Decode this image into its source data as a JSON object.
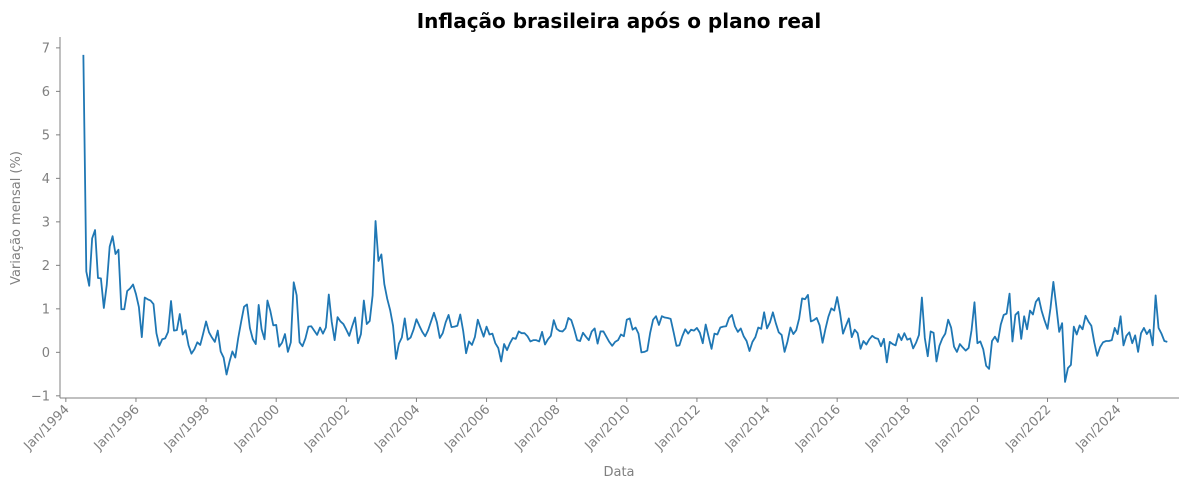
{
  "chart_data": {
    "type": "line",
    "title": "Inflação brasileira após o plano real",
    "xlabel": "Data",
    "ylabel": "Variação mensal (%)",
    "ylim": [
      -1.05,
      7.25
    ],
    "xlim": [
      "1993-11",
      "2025-10"
    ],
    "grid": false,
    "legend": "none",
    "yticks": [
      -1,
      0,
      1,
      2,
      3,
      4,
      5,
      6,
      7
    ],
    "ytick_labels": [
      "−1",
      "0",
      "1",
      "2",
      "3",
      "4",
      "5",
      "6",
      "7"
    ],
    "xticks": [
      "1994-01",
      "1996-01",
      "1998-01",
      "2000-01",
      "2002-01",
      "2004-01",
      "2006-01",
      "2008-01",
      "2010-01",
      "2012-01",
      "2014-01",
      "2016-01",
      "2018-01",
      "2020-01",
      "2022-01",
      "2024-01"
    ],
    "xtick_labels": [
      "Jan/1994",
      "Jan/1996",
      "Jan/1998",
      "Jan/2000",
      "Jan/2002",
      "Jan/2004",
      "Jan/2006",
      "Jan/2008",
      "Jan/2010",
      "Jan/2012",
      "Jan/2014",
      "Jan/2016",
      "Jan/2018",
      "Jan/2020",
      "Jan/2022",
      "Jan/2024"
    ],
    "series": [
      {
        "color": "#1f77b4",
        "start": "1994-07",
        "frequency": "monthly",
        "values": [
          6.84,
          1.86,
          1.53,
          2.62,
          2.81,
          1.71,
          1.7,
          1.02,
          1.55,
          2.43,
          2.67,
          2.26,
          2.36,
          0.99,
          0.99,
          1.41,
          1.47,
          1.56,
          1.34,
          1.04,
          0.35,
          1.26,
          1.22,
          1.19,
          1.11,
          0.44,
          0.15,
          0.3,
          0.32,
          0.47,
          1.18,
          0.5,
          0.51,
          0.88,
          0.41,
          0.51,
          0.16,
          -0.03,
          0.07,
          0.23,
          0.17,
          0.43,
          0.71,
          0.46,
          0.34,
          0.24,
          0.5,
          0.02,
          -0.12,
          -0.51,
          -0.22,
          0.02,
          -0.12,
          0.33,
          0.7,
          1.05,
          1.1,
          0.56,
          0.3,
          0.19,
          1.09,
          0.53,
          0.3,
          1.19,
          0.95,
          0.62,
          0.63,
          0.13,
          0.22,
          0.42,
          0.01,
          0.23,
          1.61,
          1.31,
          0.23,
          0.14,
          0.32,
          0.59,
          0.6,
          0.5,
          0.4,
          0.57,
          0.43,
          0.57,
          1.33,
          0.7,
          0.28,
          0.81,
          0.71,
          0.65,
          0.52,
          0.38,
          0.6,
          0.8,
          0.21,
          0.42,
          1.19,
          0.65,
          0.72,
          1.31,
          3.02,
          2.1,
          2.25,
          1.57,
          1.23,
          0.97,
          0.61,
          -0.15,
          0.2,
          0.34,
          0.78,
          0.29,
          0.34,
          0.52,
          0.76,
          0.61,
          0.47,
          0.37,
          0.51,
          0.71,
          0.91,
          0.69,
          0.33,
          0.44,
          0.69,
          0.86,
          0.58,
          0.59,
          0.61,
          0.87,
          0.49,
          -0.02,
          0.25,
          0.17,
          0.35,
          0.75,
          0.55,
          0.36,
          0.59,
          0.41,
          0.43,
          0.21,
          0.1,
          -0.21,
          0.19,
          0.05,
          0.21,
          0.33,
          0.31,
          0.48,
          0.44,
          0.44,
          0.37,
          0.25,
          0.28,
          0.28,
          0.25,
          0.47,
          0.18,
          0.3,
          0.38,
          0.74,
          0.54,
          0.49,
          0.48,
          0.55,
          0.79,
          0.74,
          0.53,
          0.28,
          0.26,
          0.45,
          0.36,
          0.28,
          0.48,
          0.55,
          0.2,
          0.48,
          0.48,
          0.36,
          0.24,
          0.15,
          0.24,
          0.28,
          0.41,
          0.37,
          0.75,
          0.78,
          0.52,
          0.57,
          0.43,
          0.0,
          0.01,
          0.04,
          0.45,
          0.75,
          0.83,
          0.63,
          0.83,
          0.8,
          0.79,
          0.77,
          0.47,
          0.15,
          0.16,
          0.37,
          0.53,
          0.43,
          0.52,
          0.5,
          0.56,
          0.45,
          0.21,
          0.64,
          0.36,
          0.08,
          0.43,
          0.41,
          0.57,
          0.59,
          0.6,
          0.79,
          0.86,
          0.6,
          0.47,
          0.55,
          0.37,
          0.26,
          0.03,
          0.24,
          0.35,
          0.57,
          0.54,
          0.92,
          0.55,
          0.69,
          0.92,
          0.67,
          0.46,
          0.4,
          0.01,
          0.25,
          0.57,
          0.42,
          0.51,
          0.78,
          1.24,
          1.22,
          1.32,
          0.71,
          0.74,
          0.79,
          0.62,
          0.22,
          0.54,
          0.82,
          1.01,
          0.96,
          1.27,
          0.9,
          0.43,
          0.61,
          0.78,
          0.35,
          0.52,
          0.44,
          0.08,
          0.26,
          0.18,
          0.3,
          0.38,
          0.33,
          0.31,
          0.14,
          0.31,
          -0.23,
          0.24,
          0.19,
          0.16,
          0.42,
          0.28,
          0.44,
          0.29,
          0.32,
          0.09,
          0.22,
          0.4,
          1.26,
          0.33,
          -0.09,
          0.48,
          0.45,
          -0.21,
          0.15,
          0.32,
          0.43,
          0.75,
          0.57,
          0.13,
          0.01,
          0.19,
          0.11,
          0.04,
          0.1,
          0.51,
          1.15,
          0.21,
          0.25,
          0.07,
          -0.31,
          -0.38,
          0.26,
          0.36,
          0.24,
          0.64,
          0.86,
          0.89,
          1.35,
          0.25,
          0.86,
          0.93,
          0.31,
          0.83,
          0.53,
          0.96,
          0.87,
          1.16,
          1.25,
          0.95,
          0.73,
          0.54,
          1.01,
          1.62,
          1.06,
          0.47,
          0.67,
          -0.68,
          -0.36,
          -0.29,
          0.59,
          0.41,
          0.62,
          0.53,
          0.84,
          0.71,
          0.61,
          0.23,
          -0.08,
          0.12,
          0.23,
          0.26,
          0.26,
          0.28,
          0.56,
          0.42,
          0.83,
          0.16,
          0.38,
          0.46,
          0.21,
          0.39,
          0.01,
          0.44,
          0.56,
          0.42,
          0.52,
          0.16,
          1.31,
          0.56,
          0.43,
          0.26,
          0.24
        ]
      }
    ]
  }
}
